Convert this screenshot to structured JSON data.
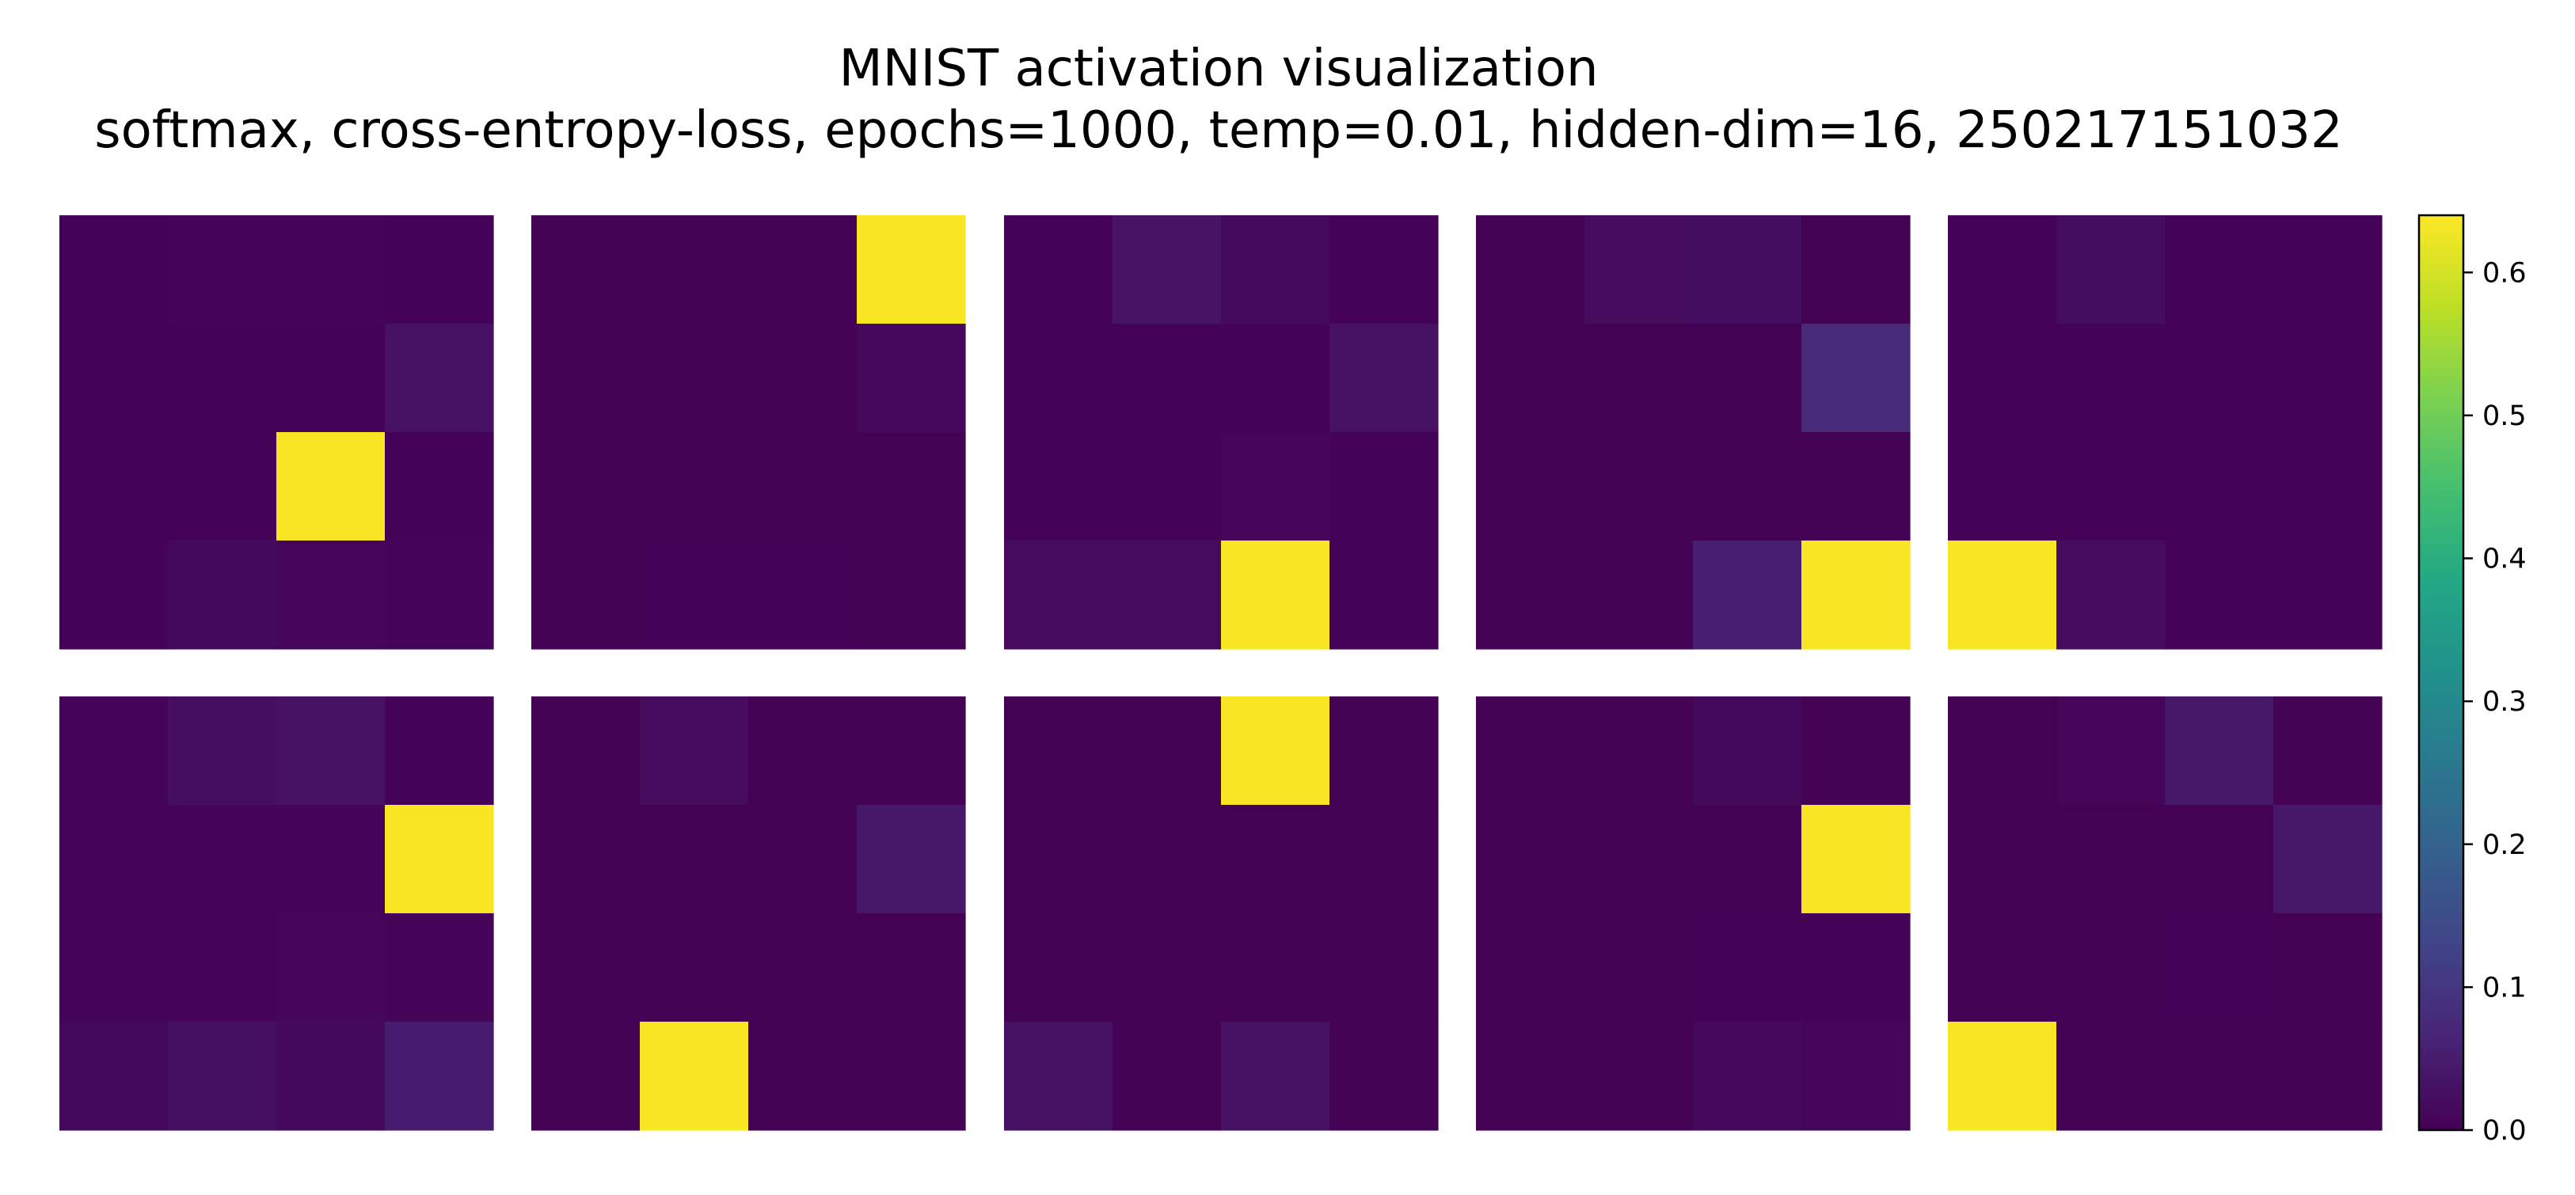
{
  "chart_data": {
    "type": "heatmap",
    "title": "MNIST activation visualization",
    "subtitle": "softmax, cross-entropy-loss, epochs=1000, temp=0.01, hidden-dim=16, 250217151032",
    "grid": false,
    "colormap": "viridis",
    "color_range": [
      0,
      0.64
    ],
    "colorbar": {
      "ticks": [
        0.0,
        0.1,
        0.2,
        0.3,
        0.4,
        0.5,
        0.6
      ],
      "tick_labels": [
        "0.0",
        "0.1",
        "0.2",
        "0.3",
        "0.4",
        "0.5",
        "0.6"
      ],
      "placement": "right"
    },
    "layout": {
      "rows": 2,
      "cols": 5
    },
    "panels": [
      [
        [
          0.004,
          0.006,
          0.006,
          0.004
        ],
        [
          0.004,
          0.004,
          0.004,
          0.03
        ],
        [
          0.004,
          0.004,
          0.635,
          0.004
        ],
        [
          0.004,
          0.014,
          0.01,
          0.006
        ]
      ],
      [
        [
          0.002,
          0.002,
          0.002,
          0.635
        ],
        [
          0.002,
          0.002,
          0.002,
          0.012
        ],
        [
          0.002,
          0.002,
          0.002,
          0.002
        ],
        [
          0.002,
          0.004,
          0.004,
          0.002
        ]
      ],
      [
        [
          0.004,
          0.032,
          0.016,
          0.004
        ],
        [
          0.004,
          0.004,
          0.004,
          0.03
        ],
        [
          0.004,
          0.004,
          0.01,
          0.004
        ],
        [
          0.02,
          0.02,
          0.635,
          0.004
        ]
      ],
      [
        [
          0.002,
          0.018,
          0.022,
          0.002
        ],
        [
          0.002,
          0.002,
          0.002,
          0.075
        ],
        [
          0.002,
          0.002,
          0.002,
          0.002
        ],
        [
          0.002,
          0.002,
          0.055,
          0.635
        ]
      ],
      [
        [
          0.004,
          0.022,
          0.004,
          0.004
        ],
        [
          0.004,
          0.004,
          0.004,
          0.004
        ],
        [
          0.004,
          0.004,
          0.004,
          0.004
        ],
        [
          0.635,
          0.018,
          0.004,
          0.004
        ]
      ],
      [
        [
          0.006,
          0.024,
          0.03,
          0.004
        ],
        [
          0.006,
          0.006,
          0.006,
          0.635
        ],
        [
          0.006,
          0.006,
          0.008,
          0.006
        ],
        [
          0.014,
          0.028,
          0.014,
          0.05
        ]
      ],
      [
        [
          0.002,
          0.018,
          0.002,
          0.002
        ],
        [
          0.002,
          0.002,
          0.002,
          0.04
        ],
        [
          0.002,
          0.002,
          0.002,
          0.002
        ],
        [
          0.002,
          0.635,
          0.002,
          0.002
        ]
      ],
      [
        [
          0.002,
          0.002,
          0.635,
          0.002
        ],
        [
          0.002,
          0.002,
          0.002,
          0.002
        ],
        [
          0.002,
          0.002,
          0.002,
          0.002
        ],
        [
          0.03,
          0.002,
          0.03,
          0.002
        ]
      ],
      [
        [
          0.002,
          0.002,
          0.014,
          0.002
        ],
        [
          0.002,
          0.002,
          0.002,
          0.635
        ],
        [
          0.002,
          0.002,
          0.004,
          0.004
        ],
        [
          0.002,
          0.002,
          0.012,
          0.01
        ]
      ],
      [
        [
          0.002,
          0.01,
          0.042,
          0.002
        ],
        [
          0.002,
          0.002,
          0.002,
          0.04
        ],
        [
          0.002,
          0.002,
          0.004,
          0.002
        ],
        [
          0.635,
          0.002,
          0.002,
          0.002
        ]
      ]
    ]
  }
}
